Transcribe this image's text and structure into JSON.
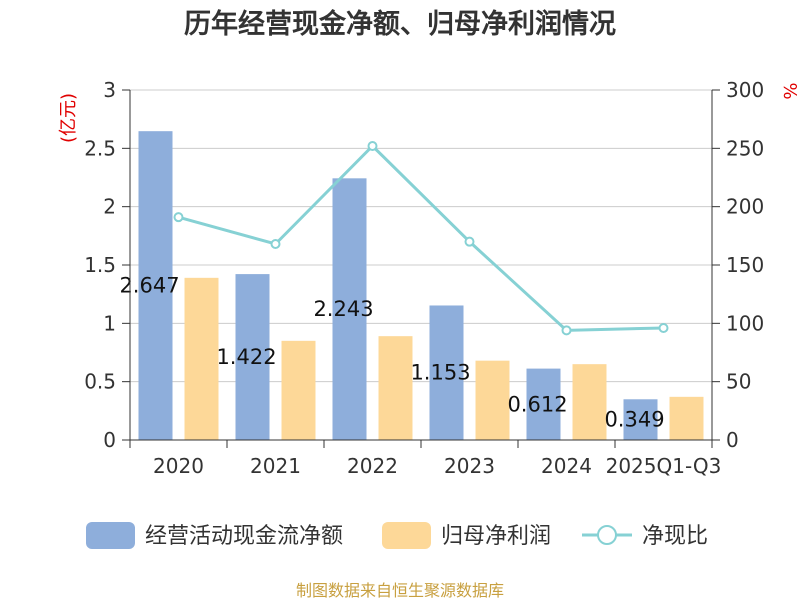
{
  "chart_data": {
    "type": "bar",
    "title": "历年经营现金净额、归母净利润情况",
    "categories": [
      "2020",
      "2021",
      "2022",
      "2023",
      "2024",
      "2025Q1-Q3"
    ],
    "series": [
      {
        "name": "经营活动现金流净额",
        "type": "bar",
        "axis": "left",
        "color": "#8eaedb",
        "values": [
          2.647,
          1.422,
          2.243,
          1.153,
          0.612,
          0.349
        ],
        "labels": [
          "2.647",
          "1.422",
          "2.243",
          "1.153",
          "0.612",
          "0.349"
        ]
      },
      {
        "name": "归母净利润",
        "type": "bar",
        "axis": "left",
        "color": "#fdd898",
        "values": [
          1.39,
          0.85,
          0.89,
          0.68,
          0.65,
          0.37
        ]
      },
      {
        "name": "净现比",
        "type": "line",
        "axis": "right",
        "color": "#86d1d4",
        "values": [
          191,
          168,
          252,
          170,
          94,
          96
        ]
      }
    ],
    "yleft": {
      "label": "(亿元)",
      "ylim": [
        0,
        3
      ],
      "ticks": [
        "0",
        "0.5",
        "1",
        "1.5",
        "2",
        "2.5",
        "3"
      ]
    },
    "yright": {
      "label": "%",
      "ylim": [
        0,
        300
      ],
      "ticks": [
        "0",
        "50",
        "100",
        "150",
        "200",
        "250",
        "300"
      ]
    },
    "grid": true,
    "legend": "bottom",
    "source": "制图数据来自恒生聚源数据库",
    "colors": {
      "grid": "#cccccc",
      "axis": "#333333",
      "axis_label": "#e00000",
      "source": "#c8a040"
    }
  }
}
